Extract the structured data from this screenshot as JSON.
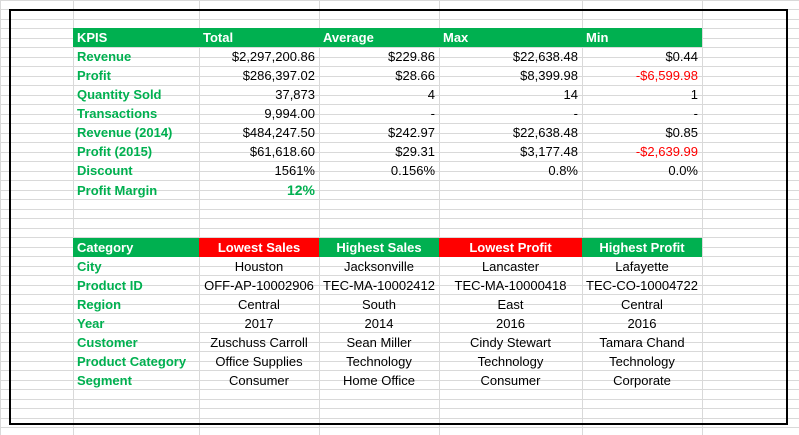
{
  "kpi_table": {
    "headers": [
      "KPIS",
      "Total",
      "Average",
      "Max",
      "Min"
    ],
    "rows": [
      {
        "label": "Revenue",
        "total": "$2,297,200.86",
        "average": "$229.86",
        "max": "$22,638.48",
        "min": "$0.44"
      },
      {
        "label": "Profit",
        "total": "$286,397.02",
        "average": "$28.66",
        "max": "$8,399.98",
        "min": "-$6,599.98"
      },
      {
        "label": "Quantity Sold",
        "total": "37,873",
        "average": "4",
        "max": "14",
        "min": "1"
      },
      {
        "label": "Transactions",
        "total": "9,994.00",
        "average": "-",
        "max": "-",
        "min": "-"
      },
      {
        "label": "Revenue (2014)",
        "total": "$484,247.50",
        "average": "$242.97",
        "max": "$22,638.48",
        "min": "$0.85"
      },
      {
        "label": "Profit (2015)",
        "total": "$61,618.60",
        "average": "$29.31",
        "max": "$3,177.48",
        "min": "-$2,639.99"
      },
      {
        "label": "Discount",
        "total": "1561%",
        "average": "0.156%",
        "max": "0.8%",
        "min": "0.0%"
      },
      {
        "label": "Profit Margin",
        "total": "12%",
        "average": "",
        "max": "",
        "min": ""
      }
    ]
  },
  "category_table": {
    "headers": [
      "Category",
      "Lowest Sales",
      "Highest Sales",
      "Lowest Profit",
      "Highest Profit"
    ],
    "rows": [
      {
        "label": "City",
        "values": [
          "Houston",
          "Jacksonville",
          "Lancaster",
          "Lafayette"
        ]
      },
      {
        "label": "Product ID",
        "values": [
          "OFF-AP-10002906",
          "TEC-MA-10002412",
          "TEC-MA-10000418",
          "TEC-CO-10004722"
        ]
      },
      {
        "label": "Region",
        "values": [
          "Central",
          "South",
          "East",
          "Central"
        ]
      },
      {
        "label": "Year",
        "values": [
          "2017",
          "2014",
          "2016",
          "2016"
        ]
      },
      {
        "label": "Customer",
        "values": [
          "Zuschuss Carroll",
          "Sean Miller",
          "Cindy Stewart",
          "Tamara Chand"
        ]
      },
      {
        "label": "Product Category",
        "values": [
          "Office Supplies",
          "Technology",
          "Technology",
          "Technology"
        ]
      },
      {
        "label": "Segment",
        "values": [
          "Consumer",
          "Home Office",
          "Consumer",
          "Corporate"
        ]
      }
    ]
  },
  "colors": {
    "header_green": "#00b050",
    "header_red": "#ff0000",
    "negative": "#ff0000"
  }
}
